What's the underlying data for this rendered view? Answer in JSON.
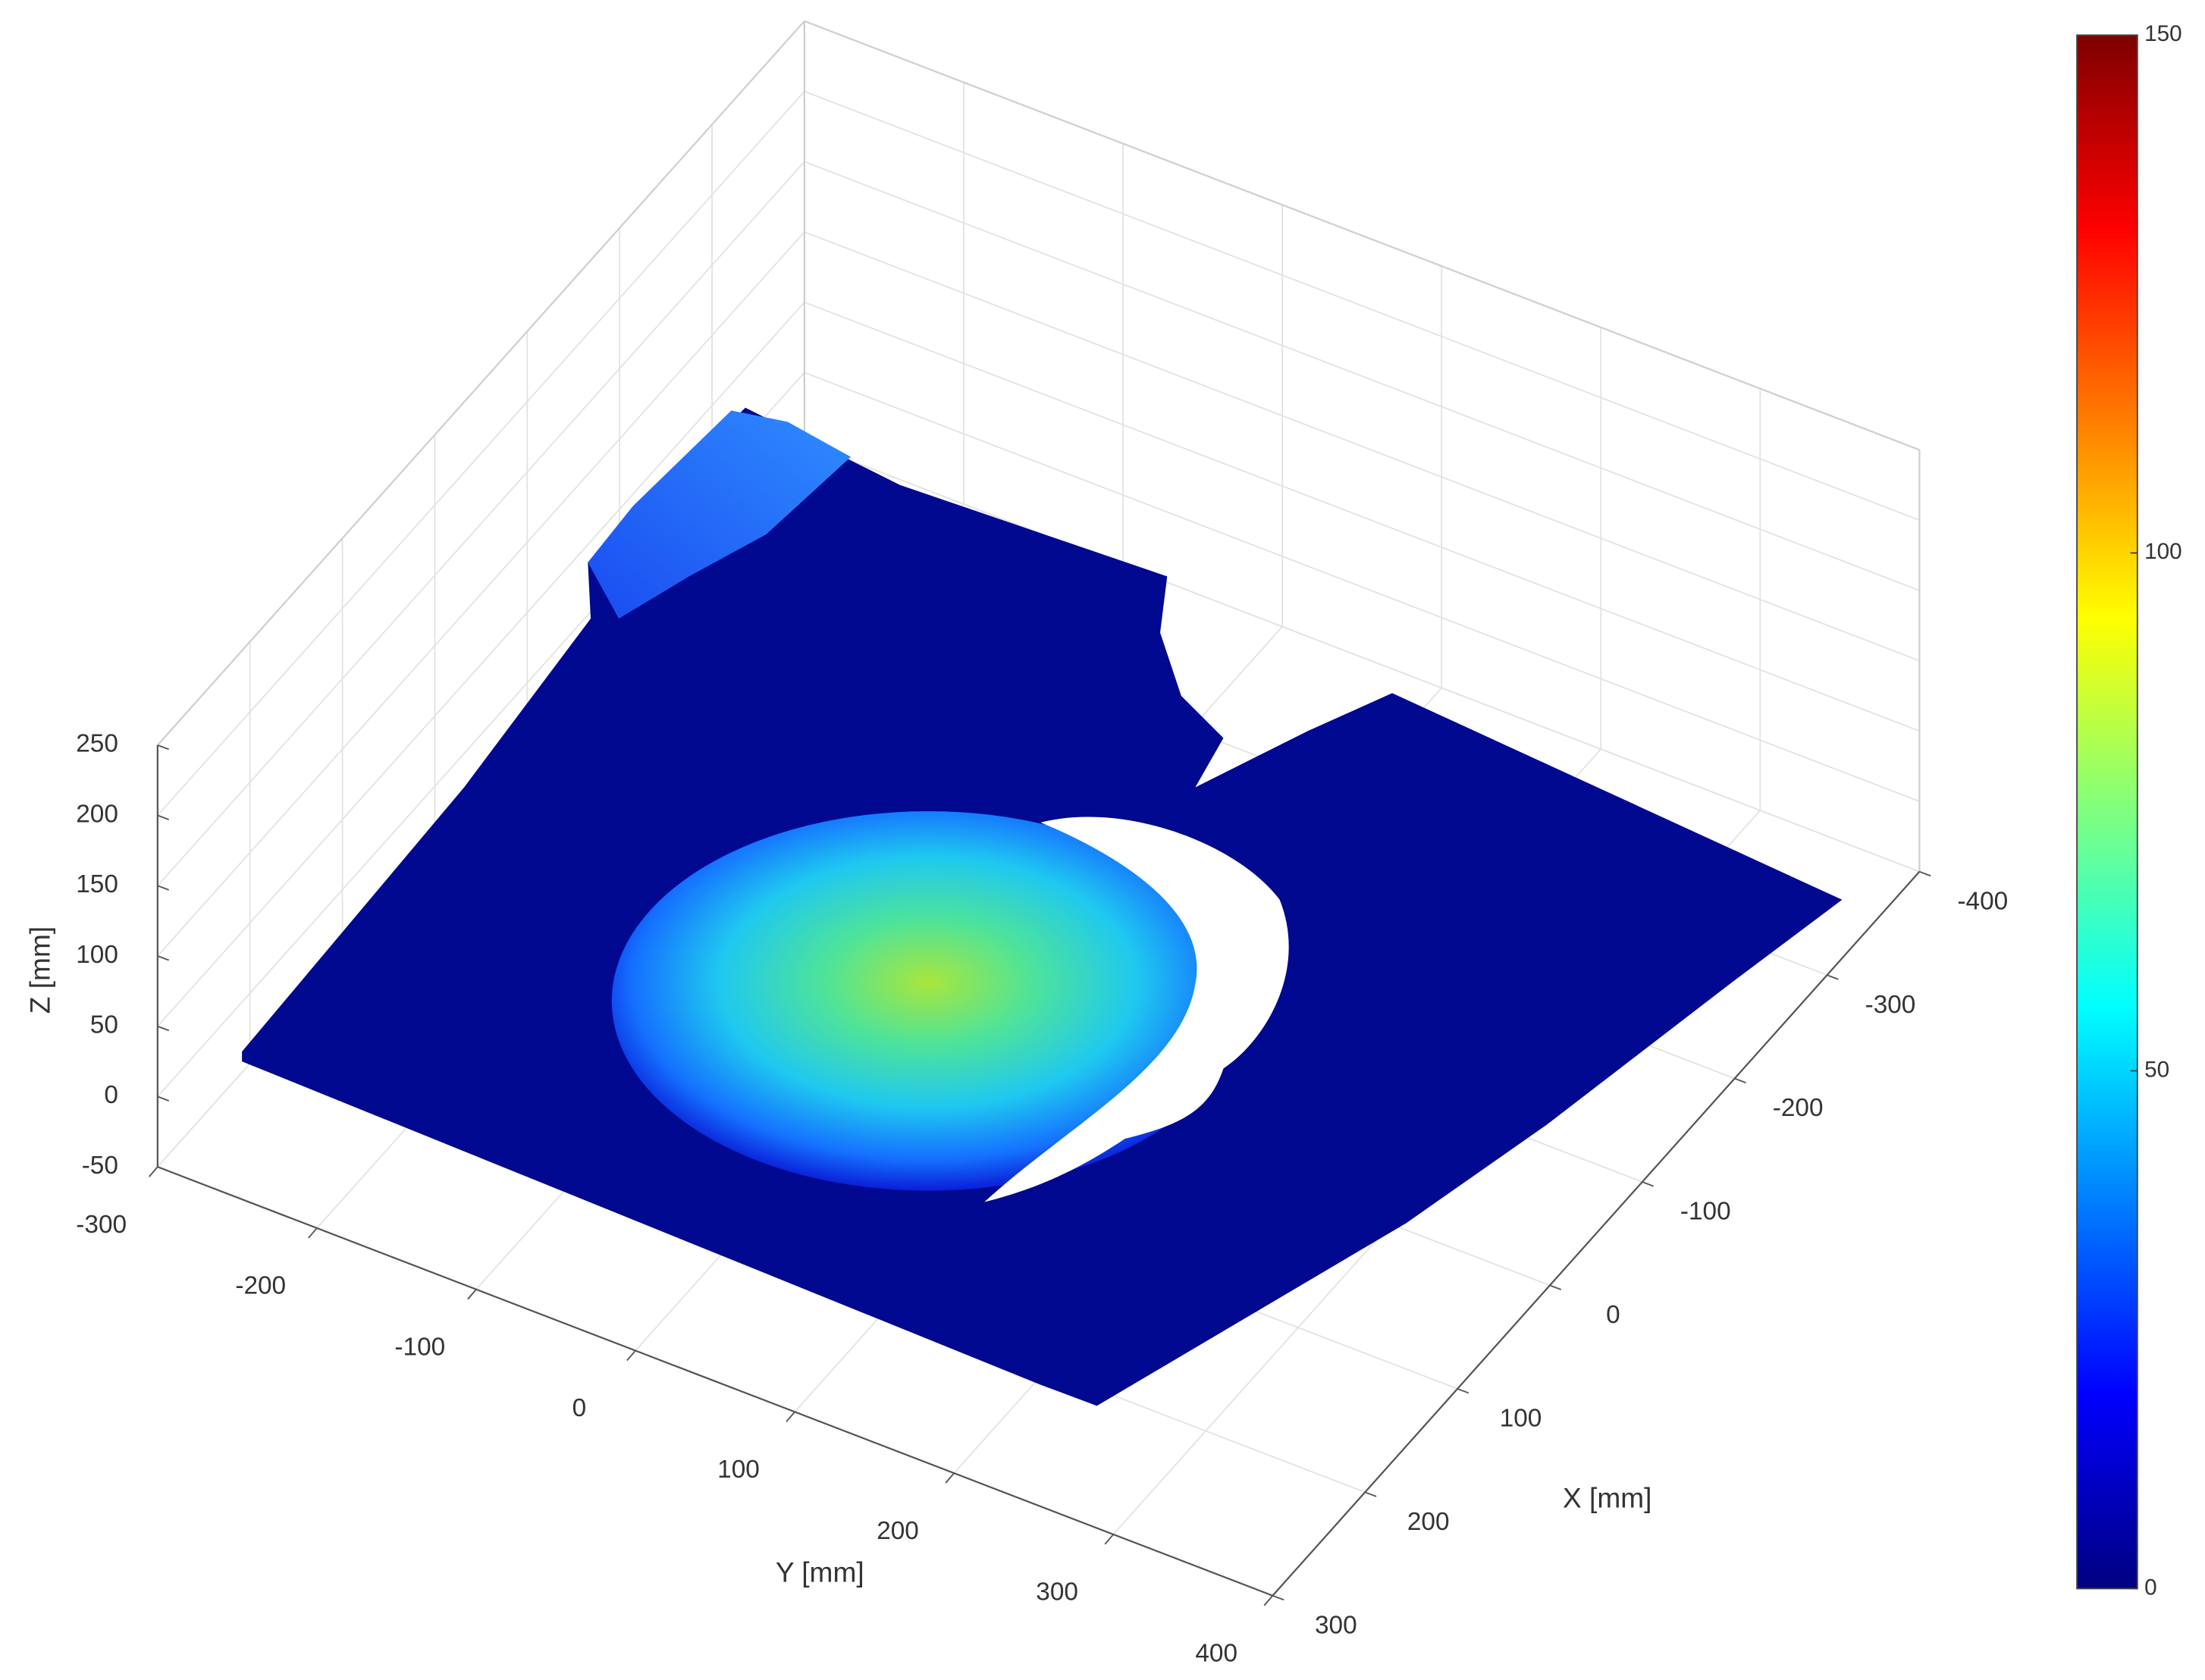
{
  "chart_data": {
    "type": "scatter3d",
    "xlabel": "X [mm]",
    "ylabel": "Y [mm]",
    "zlabel": "Z [mm]",
    "xlim": [
      -400,
      300
    ],
    "xticks": [
      -400,
      -300,
      -200,
      -100,
      0,
      100,
      200,
      300
    ],
    "ylim": [
      -300,
      400
    ],
    "yticks": [
      -300,
      -200,
      -100,
      0,
      100,
      200,
      300,
      400
    ],
    "zlim": [
      -50,
      250
    ],
    "zticks": [
      -50,
      0,
      50,
      100,
      150,
      200,
      250
    ],
    "grid": true,
    "colorbar": {
      "colormap": "jet",
      "clim": [
        0,
        150
      ],
      "ticks": [
        0,
        50,
        100,
        150
      ]
    }
  }
}
